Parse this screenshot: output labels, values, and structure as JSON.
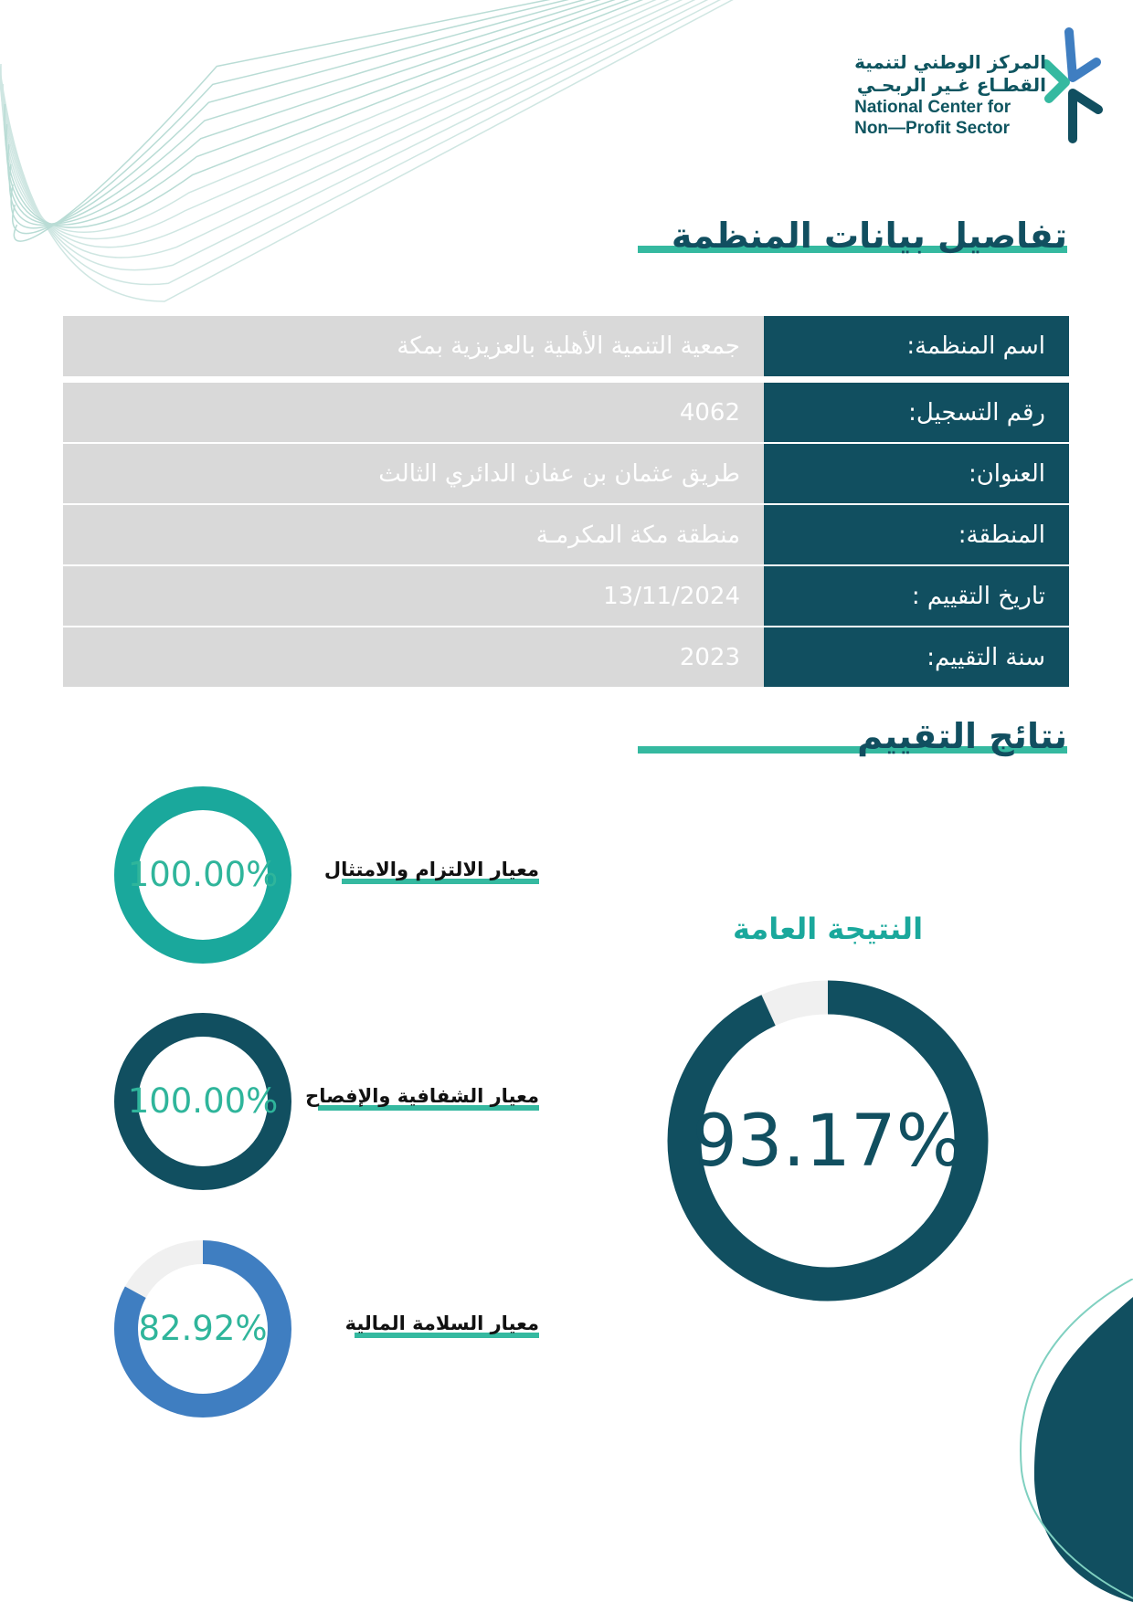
{
  "logo": {
    "ar_line1": "المركز الوطني لتنمية",
    "ar_line2": "القطـاع غـير الربحـي",
    "en_line1": "National Center for",
    "en_line2": "Non—Profit Sector"
  },
  "details": {
    "title": "تفاصيل بيانات المنظمة",
    "rows": [
      {
        "label": "اسم المنظمة:",
        "value": "جمعية التنمية الأهلية بالعزيزية بمكة"
      },
      {
        "label": "رقم التسجيل:",
        "value": "4062"
      },
      {
        "label": "العنوان:",
        "value": "طريق عثمان بن عفان الدائري الثالث"
      },
      {
        "label": "المنطقة:",
        "value": "منطقة مكة المكرمـة"
      },
      {
        "label": "تاريخ التقييم :",
        "value": "13/11/2024"
      },
      {
        "label": "سنة التقييم:",
        "value": "2023"
      }
    ]
  },
  "results": {
    "title": "نتائج التقييم",
    "overall": {
      "label": "النتيجة العامة",
      "percent": 93.17,
      "text": "93.17%",
      "color": "#114f60"
    },
    "criteria": [
      {
        "name": "معيار الالتزام والامتثال",
        "percent": 100,
        "text": "100.00%",
        "color": "#1aa89c"
      },
      {
        "name": "معيار الشفافية والإفصاح",
        "percent": 100,
        "text": "100.00%",
        "color": "#114f60"
      },
      {
        "name": "معيار السلامة المالية",
        "percent": 82.92,
        "text": "82.92%",
        "color": "#3f7ec1"
      }
    ]
  },
  "colors": {
    "primary": "#114f60",
    "accent": "#35b9a0",
    "blue": "#3f7ec1",
    "track": "#f0f0f0"
  }
}
